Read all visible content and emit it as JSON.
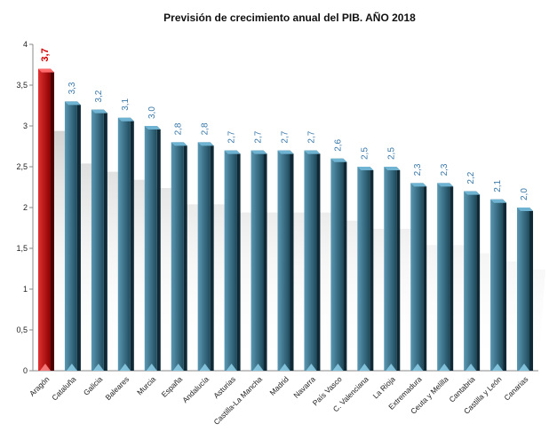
{
  "chart_data": {
    "type": "bar",
    "title": "Previsión de crecimiento anual del PIB. AÑO 2018",
    "xlabel": "",
    "ylabel": "",
    "ylim": [
      0,
      4
    ],
    "yticks": [
      "0",
      "0,5",
      "1",
      "1,5",
      "2",
      "2,5",
      "3",
      "3,5",
      "4"
    ],
    "categories": [
      "Aragón",
      "Cataluña",
      "Galicia",
      "Baleares",
      "Murcia",
      "España",
      "Andalucía",
      "Asturias",
      "Castilla-La Mancha",
      "Madrid",
      "Navarra",
      "País Vasco",
      "C. Valenciana",
      "La Rioja",
      "Extremadura",
      "Ceuta y Melilla",
      "Cantabria",
      "Castilla y León",
      "Canarias"
    ],
    "values": [
      3.7,
      3.3,
      3.2,
      3.1,
      3.0,
      2.8,
      2.8,
      2.7,
      2.7,
      2.7,
      2.7,
      2.6,
      2.5,
      2.5,
      2.3,
      2.3,
      2.2,
      2.1,
      2.0
    ],
    "value_labels": [
      "3,7",
      "3,3",
      "3,2",
      "3,1",
      "3,0",
      "2,8",
      "2,8",
      "2,7",
      "2,7",
      "2,7",
      "2,7",
      "2,6",
      "2,5",
      "2,5",
      "2,3",
      "2,3",
      "2,2",
      "2,1",
      "2,0"
    ],
    "highlight_index": 0,
    "legend": "none",
    "grid": false,
    "colors": {
      "bar_front": "#2f6880",
      "bar_side": "#0f2a36",
      "bar_top": "#6fb3d2",
      "bar_base": "#8fd0ea",
      "highlight_front": "#c41414",
      "highlight_side": "#4a0000",
      "highlight_top": "#ff6a6a",
      "label": "#3a78a8",
      "highlight_label": "#d00000"
    }
  }
}
